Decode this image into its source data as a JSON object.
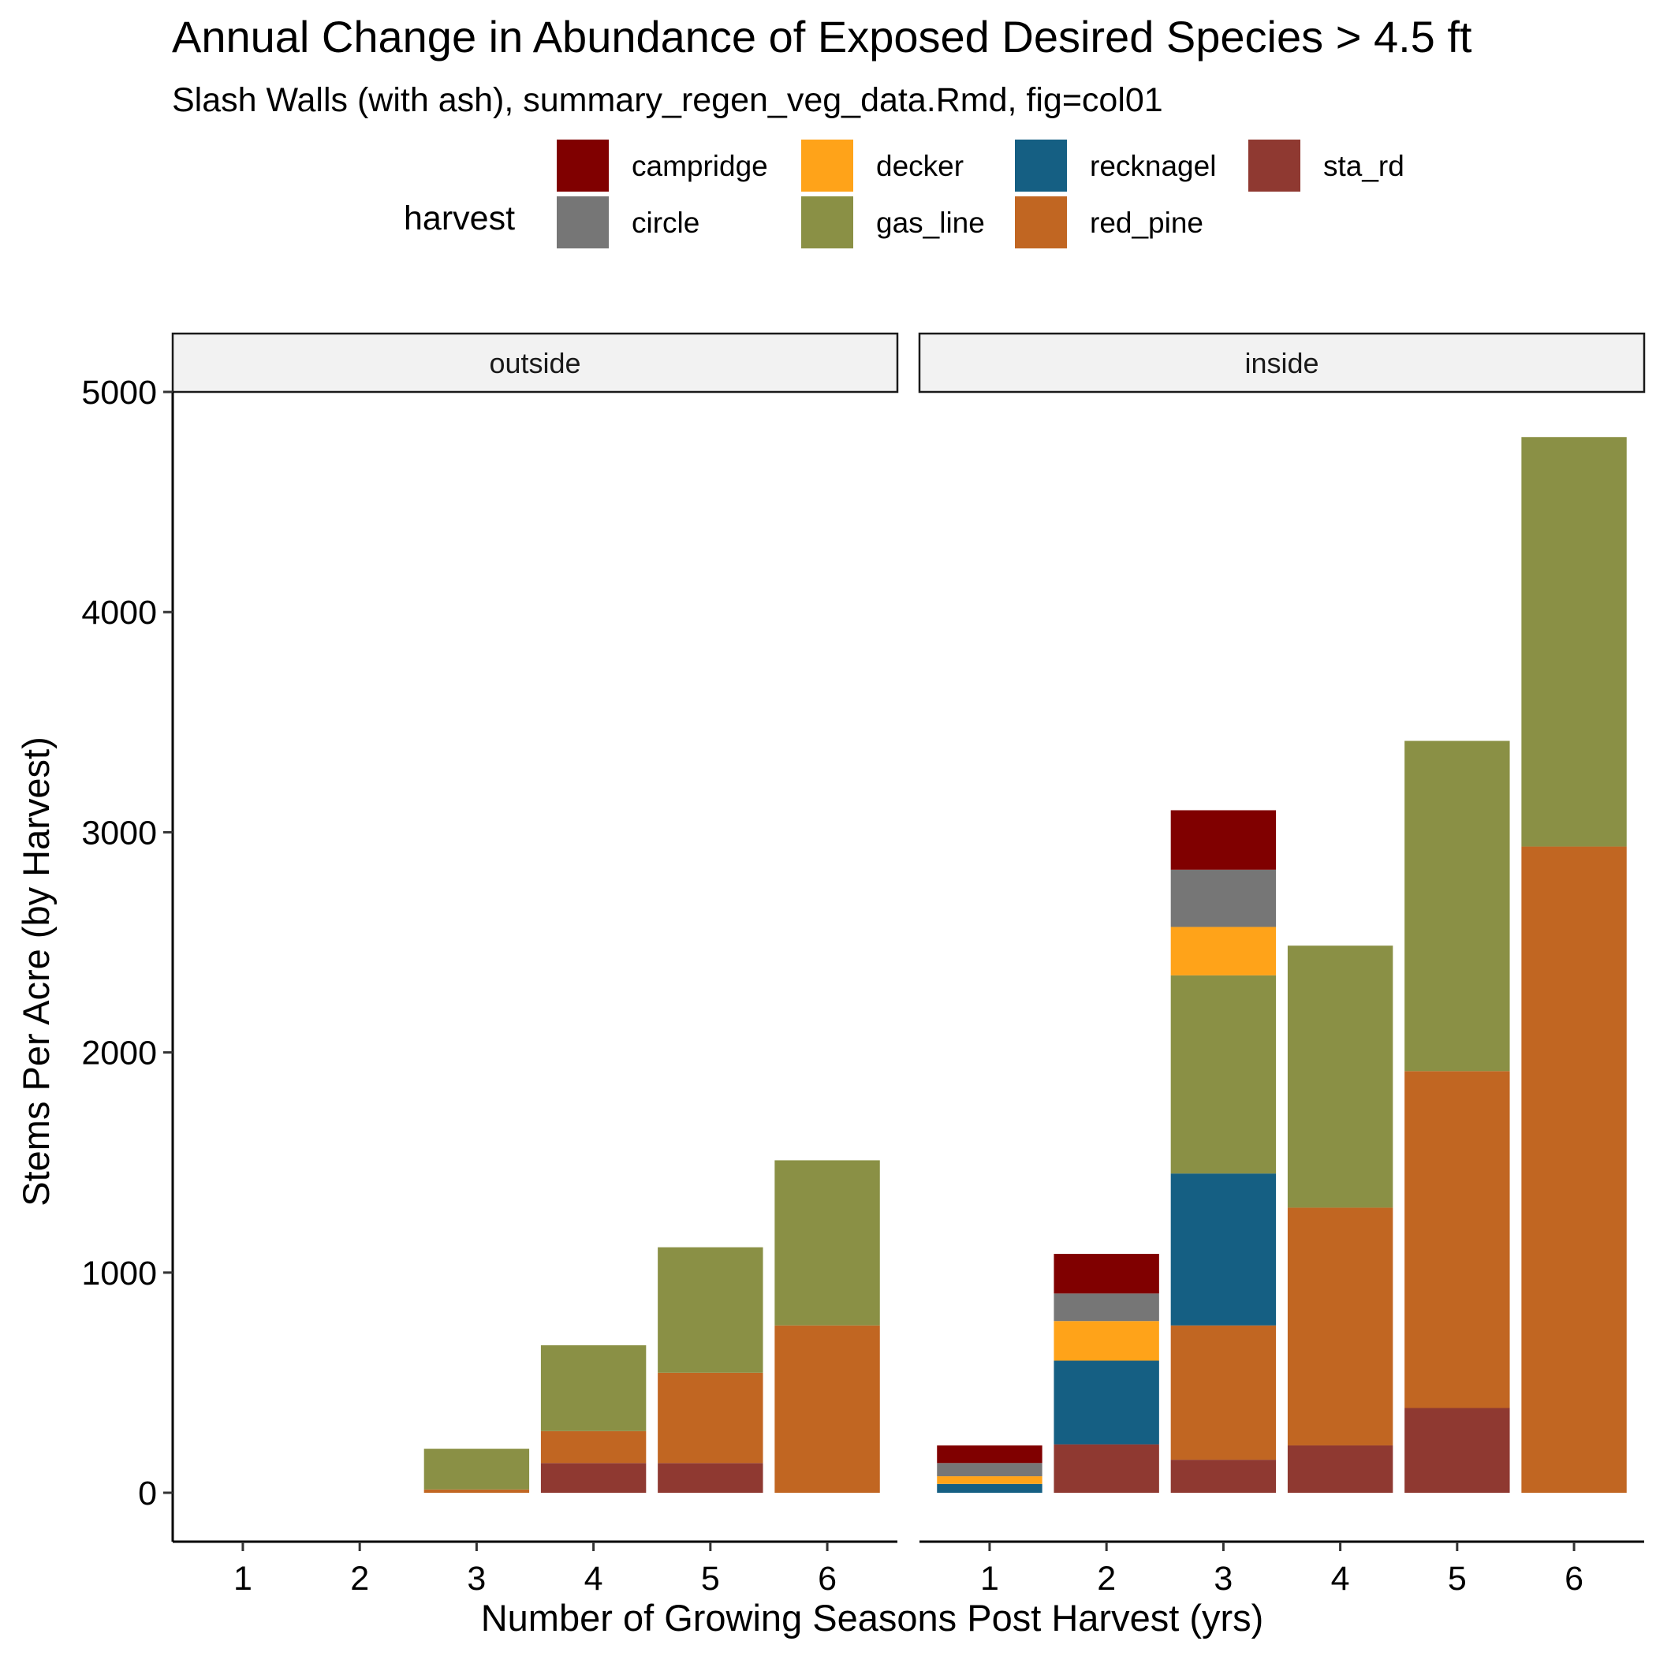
{
  "chart_data": {
    "type": "bar",
    "stacked": true,
    "title": "Annual Change in Abundance of Exposed Desired Species > 4.5 ft",
    "subtitle": "Slash Walls (with ash), summary_regen_veg_data.Rmd, fig=col01",
    "xlabel": "Number of Growing Seasons Post Harvest (yrs)",
    "ylabel": "Stems Per Acre (by Harvest)",
    "ylim": [
      0,
      5000
    ],
    "yticks": [
      "0",
      "1000",
      "2000",
      "3000",
      "4000",
      "5000"
    ],
    "categories": [
      "1",
      "2",
      "3",
      "4",
      "5",
      "6"
    ],
    "grid": false,
    "legend": {
      "title": "harvest",
      "position": "top",
      "entries": [
        {
          "key": "campridge",
          "label": "campridge",
          "color": "#800000"
        },
        {
          "key": "circle",
          "label": "circle",
          "color": "#767676"
        },
        {
          "key": "decker",
          "label": "decker",
          "color": "#FFA319"
        },
        {
          "key": "gas_line",
          "label": "gas_line",
          "color": "#8A9045"
        },
        {
          "key": "recknagel",
          "label": "recknagel",
          "color": "#155F83"
        },
        {
          "key": "red_pine",
          "label": "red_pine",
          "color": "#C16622"
        },
        {
          "key": "sta_rd",
          "label": "sta_rd",
          "color": "#8F3931"
        }
      ]
    },
    "stack_order": [
      "sta_rd",
      "red_pine",
      "recknagel",
      "gas_line",
      "decker",
      "circle",
      "campridge"
    ],
    "panels": [
      {
        "label": "outside",
        "series": [
          {
            "name": "sta_rd",
            "values": [
              0,
              0,
              0,
              135,
              135,
              0
            ]
          },
          {
            "name": "red_pine",
            "values": [
              0,
              0,
              15,
              145,
              410,
              760
            ]
          },
          {
            "name": "recknagel",
            "values": [
              0,
              0,
              0,
              0,
              0,
              0
            ]
          },
          {
            "name": "gas_line",
            "values": [
              0,
              0,
              185,
              390,
              570,
              750
            ]
          },
          {
            "name": "decker",
            "values": [
              0,
              0,
              0,
              0,
              0,
              0
            ]
          },
          {
            "name": "circle",
            "values": [
              0,
              0,
              0,
              0,
              0,
              0
            ]
          },
          {
            "name": "campridge",
            "values": [
              0,
              0,
              0,
              0,
              0,
              0
            ]
          }
        ]
      },
      {
        "label": "inside",
        "series": [
          {
            "name": "sta_rd",
            "values": [
              0,
              220,
              150,
              215,
              385,
              0
            ]
          },
          {
            "name": "red_pine",
            "values": [
              0,
              0,
              610,
              1080,
              1530,
              2935
            ]
          },
          {
            "name": "recknagel",
            "values": [
              40,
              380,
              690,
              0,
              0,
              0
            ]
          },
          {
            "name": "gas_line",
            "values": [
              0,
              0,
              900,
              1190,
              1500,
              1860
            ]
          },
          {
            "name": "decker",
            "values": [
              35,
              180,
              220,
              0,
              0,
              0
            ]
          },
          {
            "name": "circle",
            "values": [
              60,
              125,
              260,
              0,
              0,
              0
            ]
          },
          {
            "name": "campridge",
            "values": [
              80,
              180,
              270,
              0,
              0,
              0
            ]
          }
        ]
      }
    ]
  }
}
